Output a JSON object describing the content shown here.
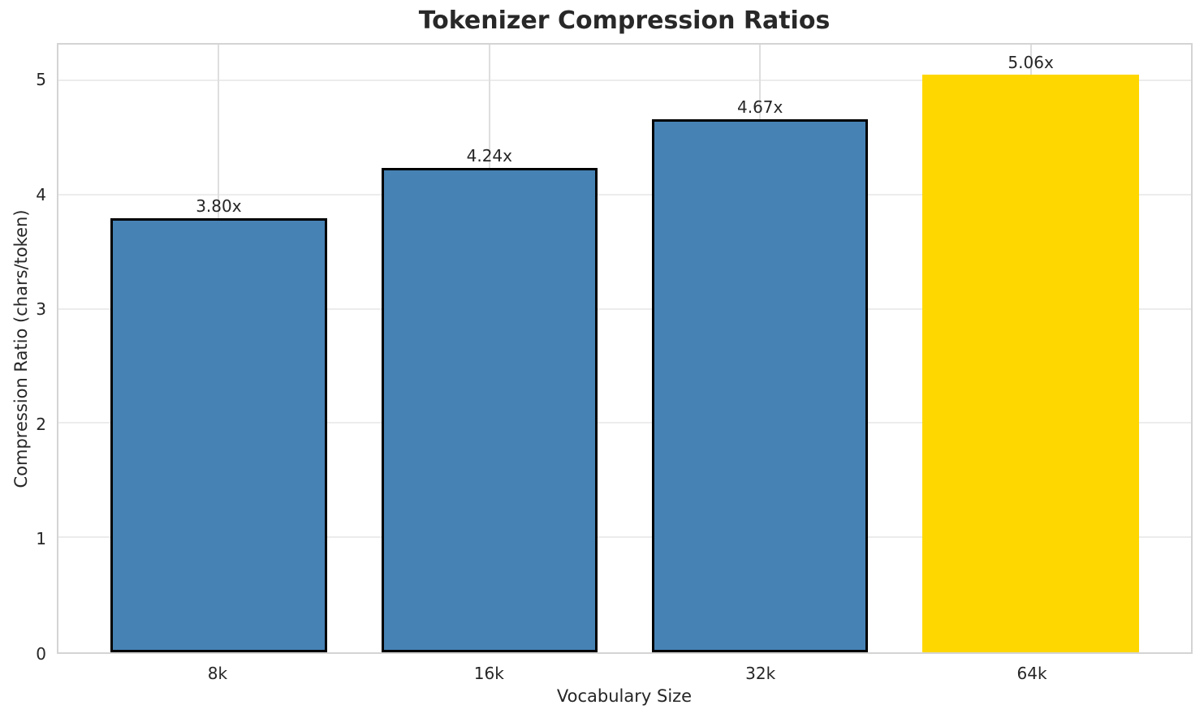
{
  "title": "Tokenizer Compression Ratios",
  "chart_data": {
    "type": "bar",
    "title": "Tokenizer Compression Ratios",
    "xlabel": "Vocabulary Size",
    "ylabel": "Compression Ratio (chars/token)",
    "categories": [
      "8k",
      "16k",
      "32k",
      "64k"
    ],
    "values": [
      3.8,
      4.24,
      4.67,
      5.06
    ],
    "bar_labels": [
      "3.80x",
      "4.24x",
      "4.67x",
      "5.06x"
    ],
    "yticks": [
      "0",
      "1",
      "2",
      "3",
      "4",
      "5"
    ],
    "ytick_values": [
      0,
      1,
      2,
      3,
      4,
      5
    ],
    "ylim": [
      0,
      5.32
    ],
    "grid": "on",
    "legend": "none",
    "highlight_index": 3,
    "colors": {
      "bar": "#4682B4",
      "highlight_bar": "#FFD700",
      "bar_edge": "#000000",
      "text": "#262626",
      "grid": "#ececec",
      "spine": "#d4d4d4"
    }
  }
}
